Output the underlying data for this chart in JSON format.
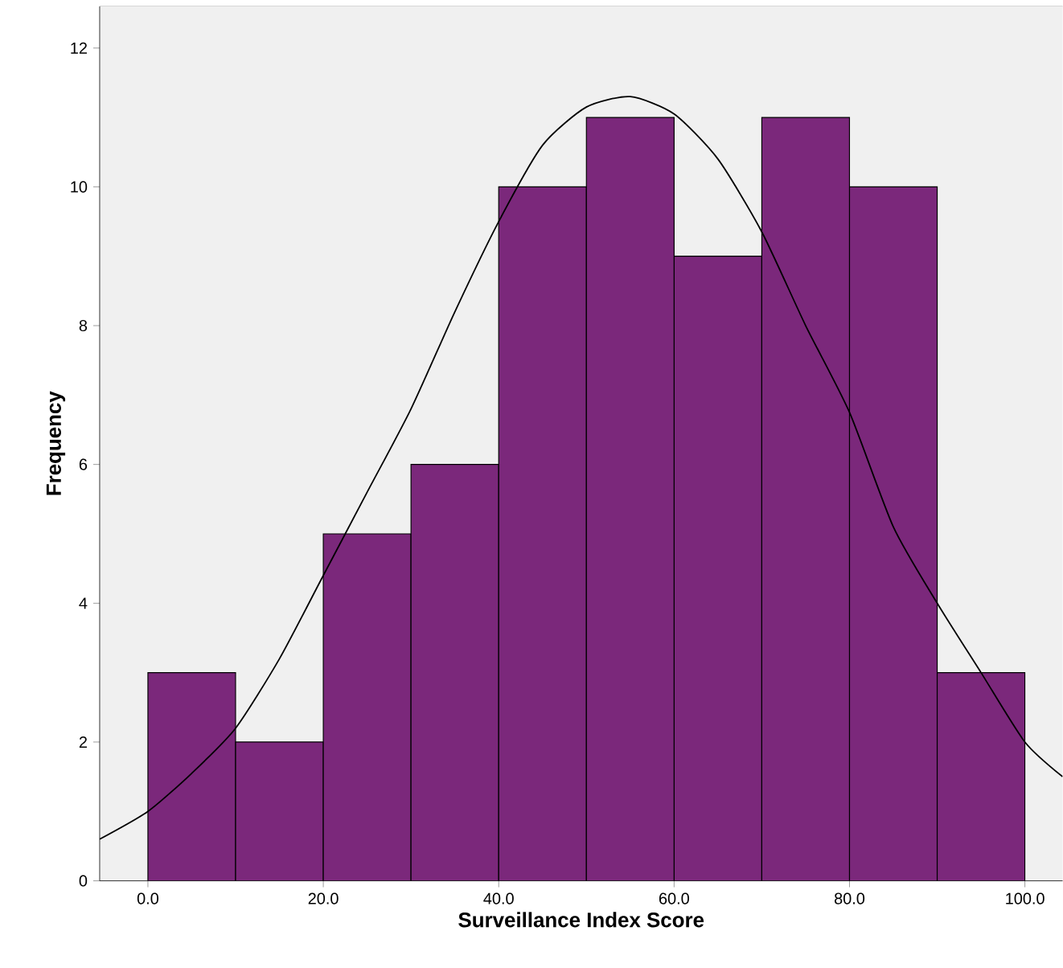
{
  "chart_data": {
    "type": "histogram",
    "xlabel": "Surveillance Index Score",
    "ylabel": "Frequency",
    "bins": [
      0,
      10,
      20,
      30,
      40,
      50,
      60,
      70,
      80,
      90,
      100
    ],
    "series": [
      {
        "color": "#7b287b",
        "values": [
          3,
          2,
          5,
          6,
          10,
          11,
          9,
          11,
          10,
          3
        ]
      },
      {
        "type": "line",
        "color": "#000000",
        "x": [
          -5.5,
          0,
          5,
          10,
          15,
          20,
          25,
          30,
          35,
          40,
          45,
          50,
          55,
          60,
          65,
          70,
          75,
          80,
          85,
          90,
          95,
          100,
          104.3
        ],
        "values": [
          0.6,
          1.0,
          1.55,
          2.2,
          3.2,
          4.4,
          5.6,
          6.8,
          8.2,
          9.5,
          10.6,
          11.15,
          11.3,
          11.05,
          10.4,
          9.35,
          8.0,
          6.75,
          5.1,
          4.0,
          3.0,
          2.0,
          1.5
        ]
      }
    ],
    "xlim": [
      -5.5,
      104.3
    ],
    "ylim": [
      0,
      12.6
    ],
    "xticks": [
      {
        "value": 0,
        "label": "0.0"
      },
      {
        "value": 20,
        "label": "20.0"
      },
      {
        "value": 40,
        "label": "40.0"
      },
      {
        "value": 60,
        "label": "60.0"
      },
      {
        "value": 80,
        "label": "80.0"
      },
      {
        "value": 100,
        "label": "100.0"
      }
    ],
    "yticks": [
      0,
      2,
      4,
      6,
      8,
      10,
      12
    ],
    "grid": false
  }
}
